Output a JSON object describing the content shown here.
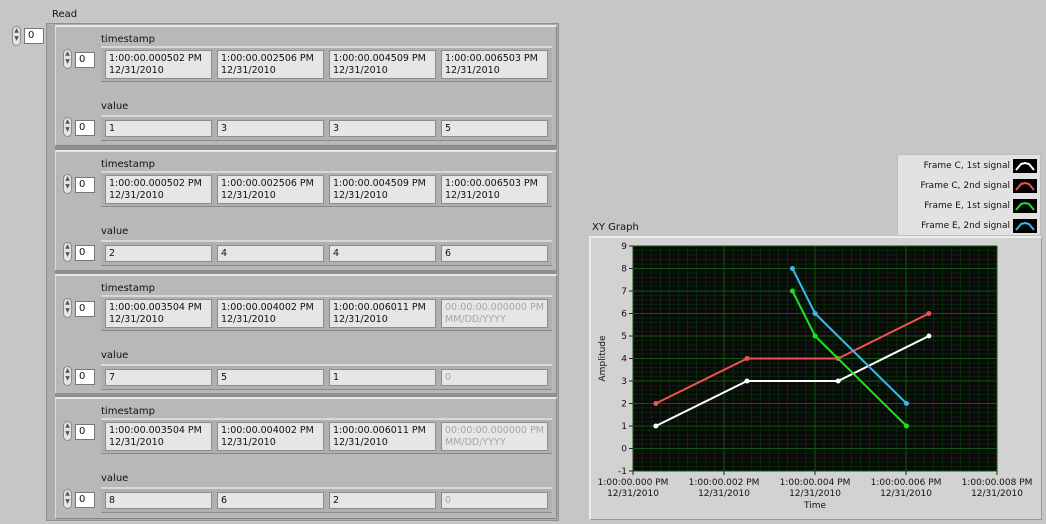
{
  "read_label": "Read",
  "outer_index": "0",
  "elements": [
    {
      "ts_label": "timestamp",
      "ts_index": "0",
      "timestamps": [
        {
          "time": "1:00:00.000502 PM",
          "date": "12/31/2010",
          "dim": false
        },
        {
          "time": "1:00:00.002506 PM",
          "date": "12/31/2010",
          "dim": false
        },
        {
          "time": "1:00:00.004509 PM",
          "date": "12/31/2010",
          "dim": false
        },
        {
          "time": "1:00:00.006503 PM",
          "date": "12/31/2010",
          "dim": false
        }
      ],
      "val_label": "value",
      "val_index": "0",
      "values": [
        "1",
        "3",
        "3",
        "5"
      ],
      "values_dim": [
        false,
        false,
        false,
        false
      ]
    },
    {
      "ts_label": "timestamp",
      "ts_index": "0",
      "timestamps": [
        {
          "time": "1:00:00.000502 PM",
          "date": "12/31/2010",
          "dim": false
        },
        {
          "time": "1:00:00.002506 PM",
          "date": "12/31/2010",
          "dim": false
        },
        {
          "time": "1:00:00.004509 PM",
          "date": "12/31/2010",
          "dim": false
        },
        {
          "time": "1:00:00.006503 PM",
          "date": "12/31/2010",
          "dim": false
        }
      ],
      "val_label": "value",
      "val_index": "0",
      "values": [
        "2",
        "4",
        "4",
        "6"
      ],
      "values_dim": [
        false,
        false,
        false,
        false
      ]
    },
    {
      "ts_label": "timestamp",
      "ts_index": "0",
      "timestamps": [
        {
          "time": "1:00:00.003504 PM",
          "date": "12/31/2010",
          "dim": false
        },
        {
          "time": "1:00:00.004002 PM",
          "date": "12/31/2010",
          "dim": false
        },
        {
          "time": "1:00:00.006011 PM",
          "date": "12/31/2010",
          "dim": false
        },
        {
          "time": "00:00:00.000000 PM",
          "date": "MM/DD/YYYY",
          "dim": true
        }
      ],
      "val_label": "value",
      "val_index": "0",
      "values": [
        "7",
        "5",
        "1",
        "0"
      ],
      "values_dim": [
        false,
        false,
        false,
        true
      ]
    },
    {
      "ts_label": "timestamp",
      "ts_index": "0",
      "timestamps": [
        {
          "time": "1:00:00.003504 PM",
          "date": "12/31/2010",
          "dim": false
        },
        {
          "time": "1:00:00.004002 PM",
          "date": "12/31/2010",
          "dim": false
        },
        {
          "time": "1:00:00.006011 PM",
          "date": "12/31/2010",
          "dim": false
        },
        {
          "time": "00:00:00.000000 PM",
          "date": "MM/DD/YYYY",
          "dim": true
        }
      ],
      "val_label": "value",
      "val_index": "0",
      "values": [
        "8",
        "6",
        "2",
        "0"
      ],
      "values_dim": [
        false,
        false,
        false,
        true
      ]
    }
  ],
  "chart_data": {
    "type": "line",
    "title": "XY Graph",
    "xlabel": "Time",
    "ylabel": "Amplitude",
    "ylim": [
      -1,
      9
    ],
    "yticks": [
      "-1",
      "0",
      "1",
      "2",
      "3",
      "4",
      "5",
      "6",
      "7",
      "8",
      "9"
    ],
    "xlim_ms": [
      0,
      0.008
    ],
    "xticks": [
      {
        "ms": 0.0,
        "time": "1:00:00.000 PM",
        "date": "12/31/2010"
      },
      {
        "ms": 0.002,
        "time": "1:00:00.002 PM",
        "date": "12/31/2010"
      },
      {
        "ms": 0.004,
        "time": "1:00:00.004 PM",
        "date": "12/31/2010"
      },
      {
        "ms": 0.006,
        "time": "1:00:00.006 PM",
        "date": "12/31/2010"
      },
      {
        "ms": 0.008,
        "time": "1:00:00.008 PM",
        "date": "12/31/2010"
      }
    ],
    "grid": true,
    "plot_background": "#0a0a0a",
    "grid_color": "#0f5a0f",
    "legend_position": "top-right",
    "series": [
      {
        "name": "Frame C, 1st signal",
        "color": "#ffffff",
        "x": [
          0.000502,
          0.002506,
          0.004509,
          0.006503
        ],
        "y": [
          1,
          3,
          3,
          5
        ]
      },
      {
        "name": "Frame C, 2nd signal",
        "color": "#ef5350",
        "x": [
          0.000502,
          0.002506,
          0.004509,
          0.006503
        ],
        "y": [
          2,
          4,
          4,
          6
        ]
      },
      {
        "name": "Frame E, 1st signal",
        "color": "#22e022",
        "x": [
          0.003504,
          0.004002,
          0.006011
        ],
        "y": [
          7,
          5,
          1
        ]
      },
      {
        "name": "Frame E, 2nd signal",
        "color": "#33bbee",
        "x": [
          0.003504,
          0.004002,
          0.006011
        ],
        "y": [
          8,
          6,
          2
        ]
      }
    ]
  }
}
